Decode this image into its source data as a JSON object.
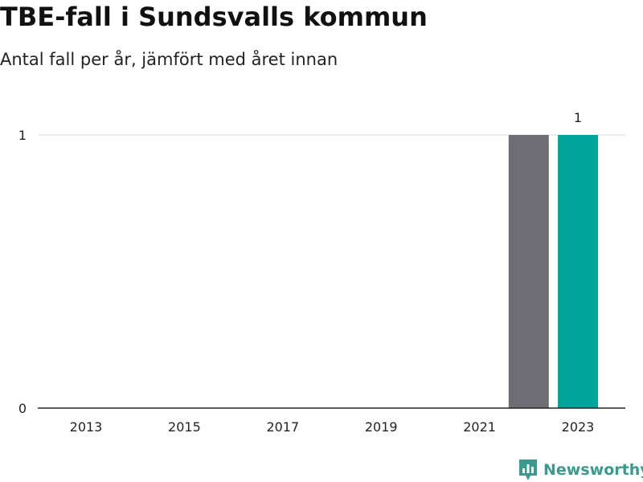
{
  "title": "TBE-fall i Sundsvalls kommun",
  "subtitle": "Antal fall per år, jämfört med året innan",
  "brand": {
    "name": "Newsworthy",
    "logo_icon": "newsworthy-chart-badge-icon",
    "color": "#3a9a8e"
  },
  "colors": {
    "previous_year": "#6d6d73",
    "current_year": "#00a499",
    "gridline": "#d9d9d9",
    "axis": "#222222"
  },
  "chart_data": {
    "type": "bar",
    "categories": [
      "2013",
      "2014",
      "2015",
      "2016",
      "2017",
      "2018",
      "2019",
      "2020",
      "2021",
      "2022",
      "2023"
    ],
    "x_tick_labels": [
      "2013",
      "2015",
      "2017",
      "2019",
      "2021",
      "2023"
    ],
    "values": [
      0,
      0,
      0,
      0,
      0,
      0,
      0,
      0,
      0,
      1,
      1
    ],
    "highlight_category": "2023",
    "bar_data_labels": [
      {
        "category": "2023",
        "label": "1"
      }
    ],
    "y_ticks": [
      0,
      1
    ],
    "ylim": [
      0,
      1
    ],
    "xlabel": "",
    "ylabel": "",
    "grid": true,
    "legend": "none"
  }
}
